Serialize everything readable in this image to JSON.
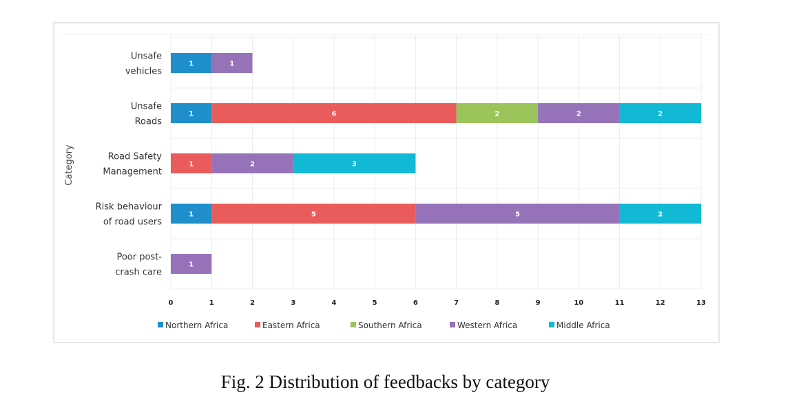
{
  "chart_data": {
    "type": "bar",
    "orientation": "horizontal",
    "stacked": true,
    "title": "",
    "xlabel": "",
    "ylabel": "Category",
    "xlim": [
      0,
      13
    ],
    "x_ticks": [
      "0",
      "1",
      "2",
      "3",
      "4",
      "5",
      "6",
      "7",
      "8",
      "9",
      "10",
      "11",
      "12",
      "13"
    ],
    "grid": true,
    "legend_position": "bottom",
    "categories": [
      [
        "Unsafe",
        "vehicles"
      ],
      [
        "Unsafe",
        "Roads"
      ],
      [
        "Road Safety",
        "Management"
      ],
      [
        "Risk behaviour",
        "of road users"
      ],
      [
        "Poor post-",
        "crash care"
      ]
    ],
    "series": [
      {
        "name": "Northern Africa",
        "color": "#1f8fcc",
        "values": [
          1,
          1,
          0,
          1,
          0
        ]
      },
      {
        "name": "Eastern Africa",
        "color": "#ea5b5b",
        "values": [
          0,
          6,
          1,
          5,
          0
        ]
      },
      {
        "name": "Southern Africa",
        "color": "#9bc45a",
        "values": [
          0,
          2,
          0,
          0,
          0
        ]
      },
      {
        "name": "Western Africa",
        "color": "#9673b9",
        "values": [
          1,
          2,
          2,
          5,
          1
        ]
      },
      {
        "name": "Middle Africa",
        "color": "#12b9d4",
        "values": [
          0,
          2,
          3,
          2,
          0
        ]
      }
    ]
  },
  "caption": "Fig. 2 Distribution of feedbacks by category"
}
